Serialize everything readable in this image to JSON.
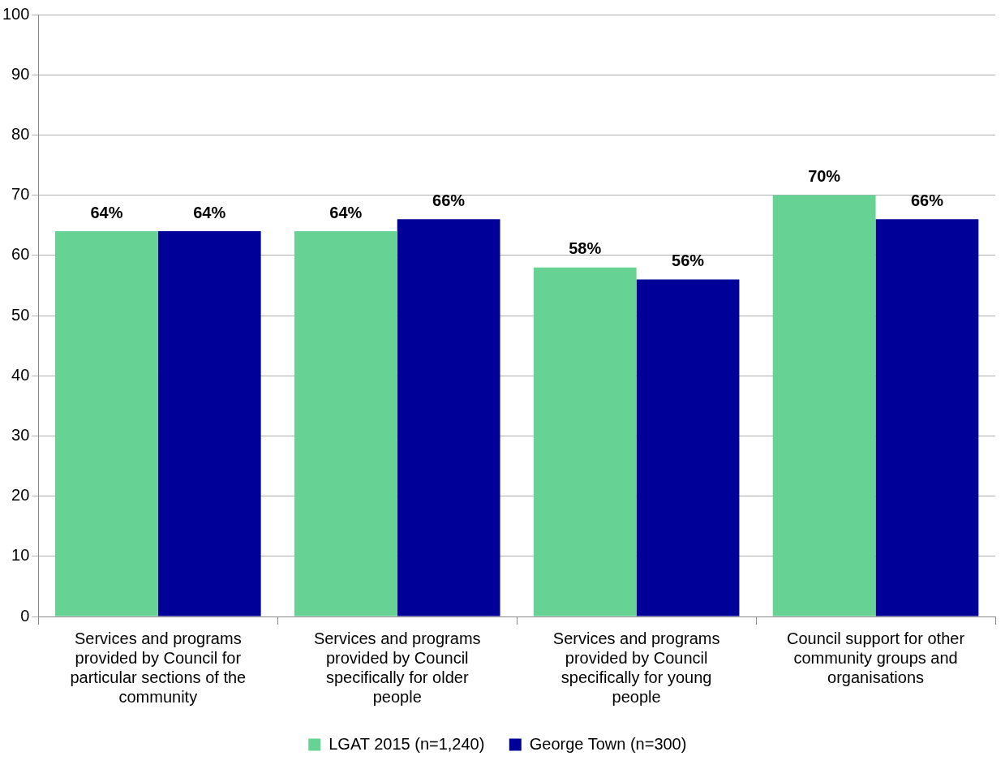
{
  "chart_data": {
    "type": "bar",
    "categories": [
      [
        "Services and programs",
        "provided by Council for",
        "particular sections of the",
        "community"
      ],
      [
        "Services and programs",
        "provided by Council",
        "specifically for older",
        "people"
      ],
      [
        "Services and programs",
        "provided by Council",
        "specifically for young",
        "people"
      ],
      [
        "Council support for other",
        "community groups and",
        "organisations"
      ]
    ],
    "series": [
      {
        "name": "LGAT 2015 (n=1,240)",
        "color": "#66d293",
        "values": [
          64,
          64,
          58,
          70
        ],
        "value_labels": [
          "64%",
          "64%",
          "58%",
          "70%"
        ]
      },
      {
        "name": "George Town (n=300)",
        "color": "#000099",
        "values": [
          64,
          66,
          56,
          66
        ],
        "value_labels": [
          "64%",
          "66%",
          "56%",
          "66%"
        ]
      }
    ],
    "ylim": [
      0,
      100
    ],
    "yticks": [
      0,
      10,
      20,
      30,
      40,
      50,
      60,
      70,
      80,
      90,
      100
    ],
    "grid": "y",
    "legend": "bottom"
  }
}
